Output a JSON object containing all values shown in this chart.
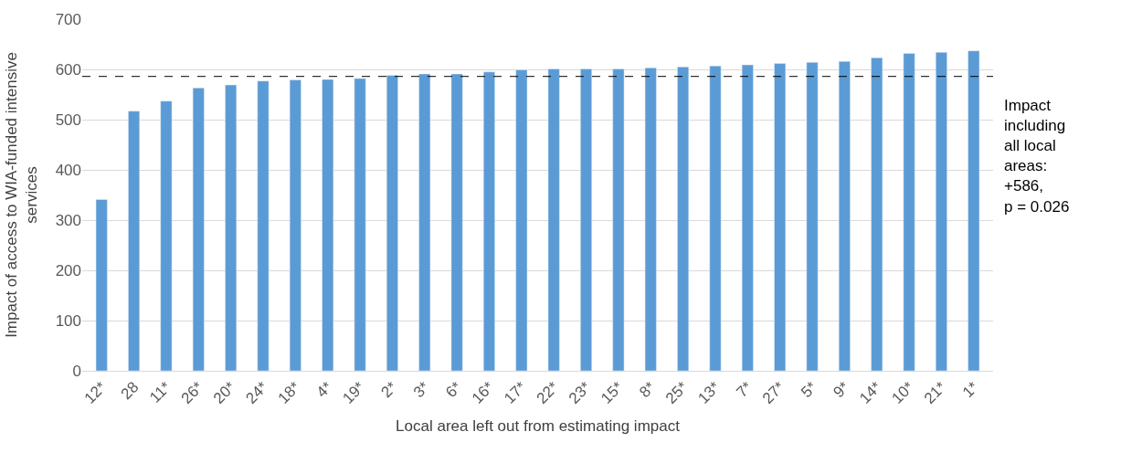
{
  "chart_data": {
    "type": "bar",
    "xlabel": "Local area left out from estimating impact",
    "ylabel": "Impact of access to WIA-funded intensive\nservices",
    "categories": [
      "12*",
      "28",
      "11*",
      "26*",
      "20*",
      "24*",
      "18*",
      "4*",
      "19*",
      "2*",
      "3*",
      "6*",
      "16*",
      "17*",
      "22*",
      "23*",
      "15*",
      "8*",
      "25*",
      "13*",
      "7*",
      "27*",
      "5*",
      "9*",
      "14*",
      "10*",
      "21*",
      "1*"
    ],
    "values": [
      341,
      517,
      537,
      563,
      569,
      577,
      579,
      580,
      582,
      588,
      591,
      591,
      595,
      599,
      601,
      601,
      601,
      603,
      605,
      607,
      609,
      612,
      614,
      616,
      623,
      632,
      634,
      637
    ],
    "color": "#5b9bd5",
    "ylim": [
      0,
      700
    ],
    "yticks": [
      0,
      100,
      200,
      300,
      400,
      500,
      600,
      700
    ],
    "grid": "y",
    "ref_lines": [
      {
        "axis": "y",
        "value": 586,
        "label": "Impact\nincluding\nall local\nareas:\n+586,\np = 0.026",
        "color": "#000000",
        "line_style": "dashed"
      }
    ]
  }
}
